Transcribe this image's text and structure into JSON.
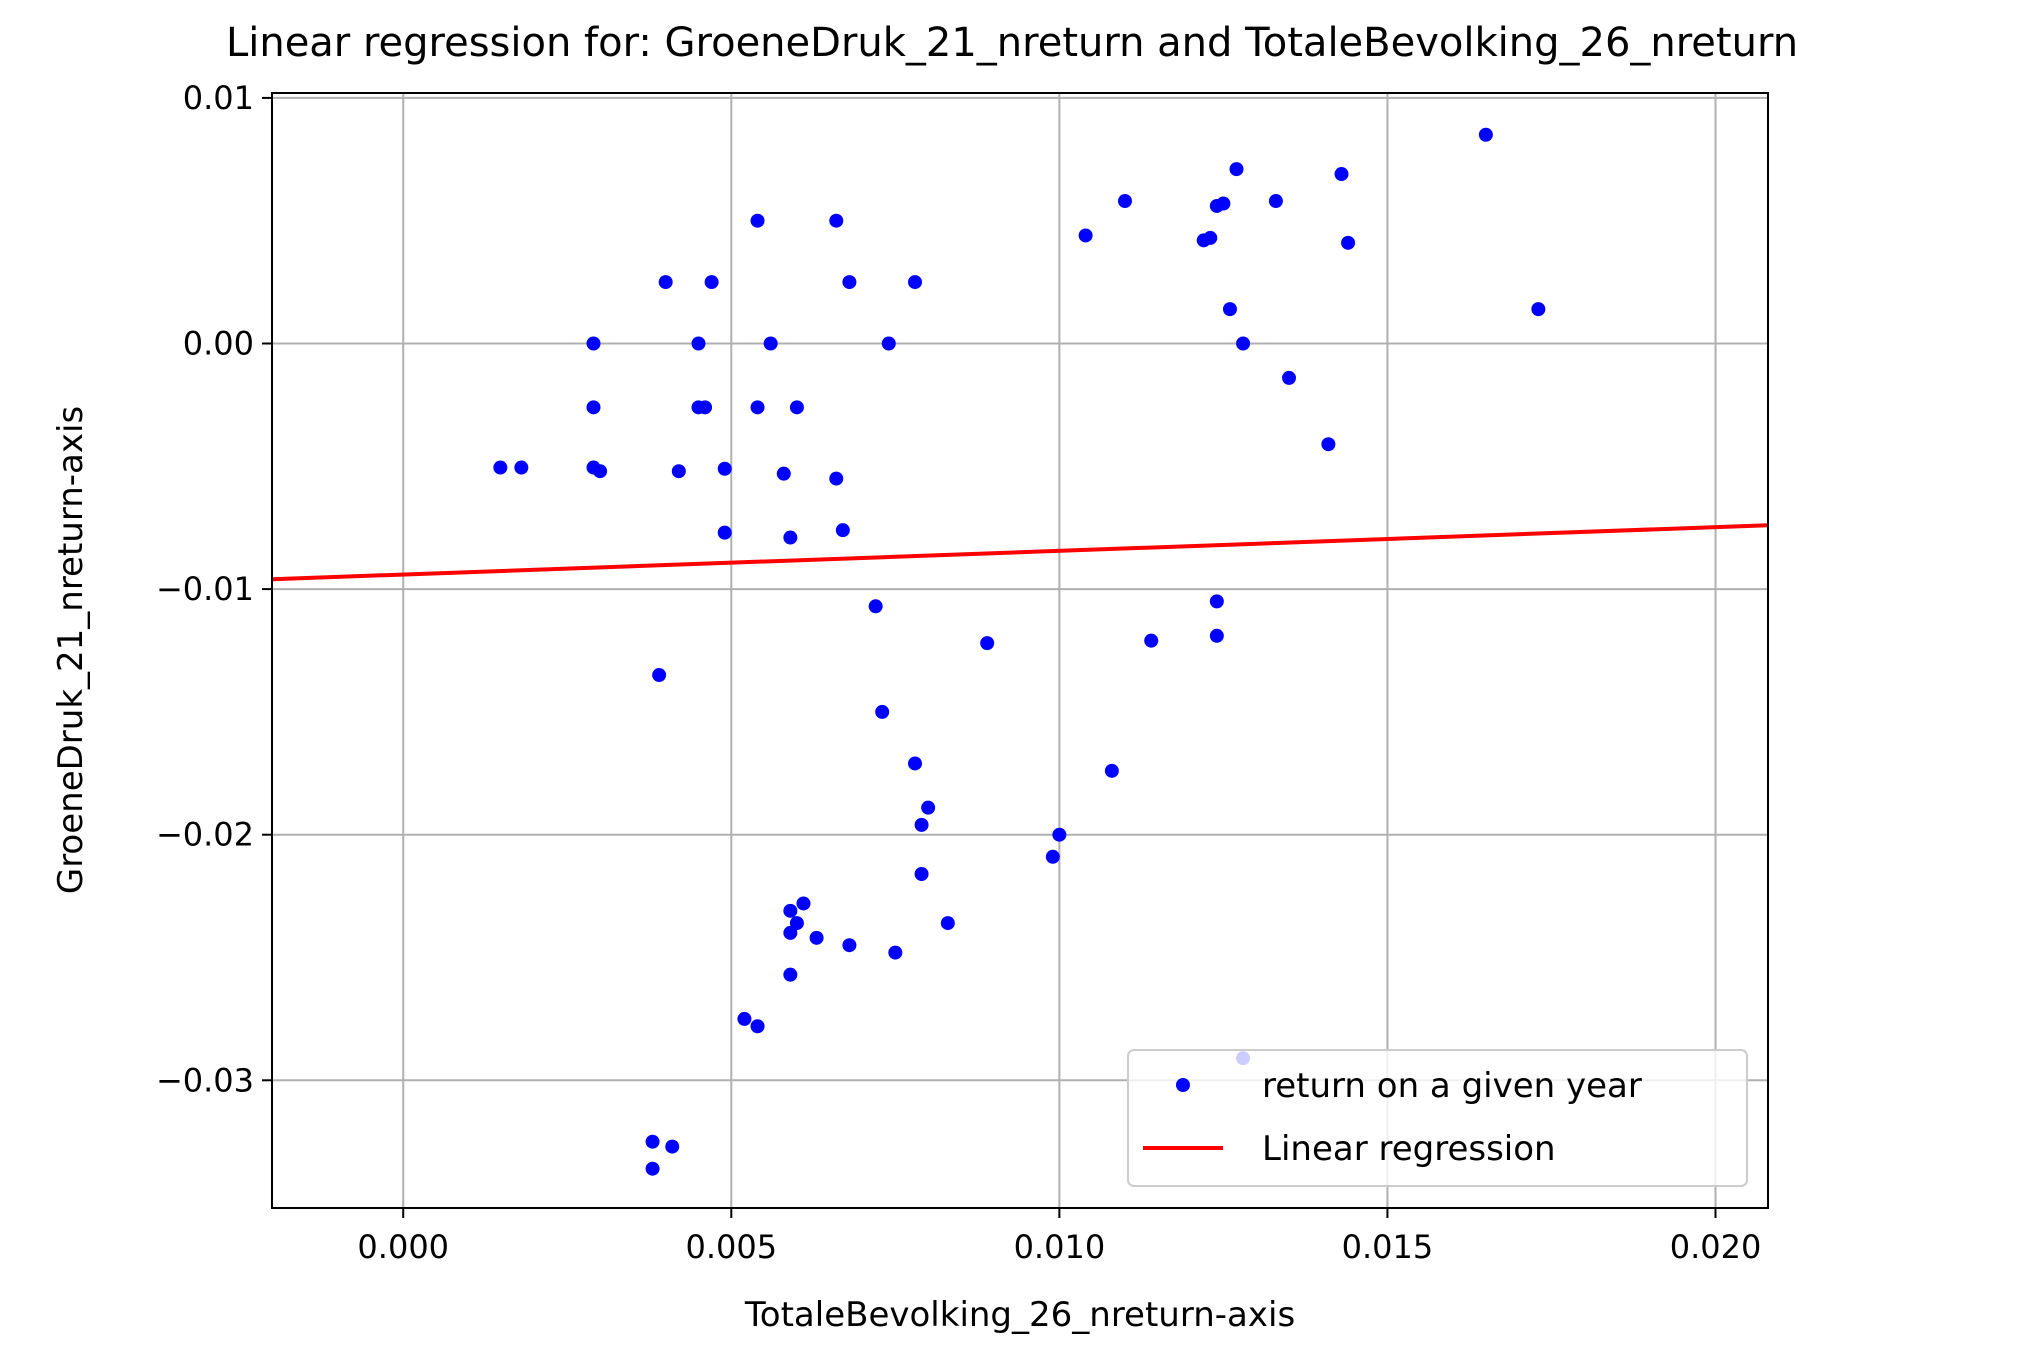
{
  "chart_data": {
    "type": "scatter",
    "title": "Linear regression for: GroeneDruk_21_nreturn and TotaleBevolking_26_nreturn",
    "xlabel": "TotaleBevolking_26_nreturn-axis",
    "ylabel": "GroeneDruk_21_nreturn-axis",
    "xlim": [
      -0.002,
      0.0208
    ],
    "ylim": [
      -0.0352,
      0.0102
    ],
    "xticks": [
      0.0,
      0.005,
      0.01,
      0.015,
      0.02
    ],
    "xtick_labels": [
      "0.000",
      "0.005",
      "0.010",
      "0.015",
      "0.020"
    ],
    "yticks": [
      0.01,
      0.0,
      -0.01,
      -0.02,
      -0.03
    ],
    "ytick_labels": [
      "0.01",
      "0.00",
      "−0.01",
      "−0.02",
      "−0.03"
    ],
    "grid": true,
    "legend_position": "lower-right",
    "series": [
      {
        "name": "return on a given year",
        "kind": "scatter",
        "color": "#0000ff",
        "points": [
          [
            0.00148,
            -0.00505
          ],
          [
            0.0018,
            -0.00505
          ],
          [
            0.0029,
            -0.00505
          ],
          [
            0.003,
            -0.0052
          ],
          [
            0.0029,
            0.0
          ],
          [
            0.0029,
            -0.0026
          ],
          [
            0.004,
            0.0025
          ],
          [
            0.0042,
            -0.0052
          ],
          [
            0.0039,
            -0.0135
          ],
          [
            0.0045,
            -0.0026
          ],
          [
            0.0046,
            -0.0026
          ],
          [
            0.0045,
            0.0
          ],
          [
            0.0047,
            0.0025
          ],
          [
            0.0049,
            -0.0051
          ],
          [
            0.0049,
            -0.0077
          ],
          [
            0.0054,
            0.005
          ],
          [
            0.0054,
            -0.0026
          ],
          [
            0.0056,
            0.0
          ],
          [
            0.0058,
            -0.0053
          ],
          [
            0.0059,
            -0.0079
          ],
          [
            0.006,
            -0.0026
          ],
          [
            0.0066,
            0.005
          ],
          [
            0.0068,
            0.0025
          ],
          [
            0.0066,
            -0.0055
          ],
          [
            0.0067,
            -0.0076
          ],
          [
            0.0074,
            0.0
          ],
          [
            0.0078,
            0.0025
          ],
          [
            0.0072,
            -0.0107
          ],
          [
            0.0073,
            -0.015
          ],
          [
            0.0078,
            -0.0171
          ],
          [
            0.008,
            -0.0189
          ],
          [
            0.0079,
            -0.0196
          ],
          [
            0.0079,
            -0.0216
          ],
          [
            0.0059,
            -0.0231
          ],
          [
            0.0061,
            -0.0228
          ],
          [
            0.006,
            -0.0236
          ],
          [
            0.0059,
            -0.024
          ],
          [
            0.0063,
            -0.0242
          ],
          [
            0.0068,
            -0.0245
          ],
          [
            0.0075,
            -0.0248
          ],
          [
            0.0083,
            -0.0236
          ],
          [
            0.0059,
            -0.0257
          ],
          [
            0.0052,
            -0.0275
          ],
          [
            0.0054,
            -0.0278
          ],
          [
            0.0038,
            -0.0325
          ],
          [
            0.0041,
            -0.0327
          ],
          [
            0.0038,
            -0.0336
          ],
          [
            0.0089,
            -0.0122
          ],
          [
            0.0099,
            -0.0209
          ],
          [
            0.01,
            -0.02
          ],
          [
            0.0108,
            -0.0174
          ],
          [
            0.0104,
            0.0044
          ],
          [
            0.011,
            0.0058
          ],
          [
            0.0114,
            -0.0121
          ],
          [
            0.0122,
            0.0042
          ],
          [
            0.0123,
            0.0043
          ],
          [
            0.0124,
            0.0056
          ],
          [
            0.0125,
            0.0057
          ],
          [
            0.0127,
            0.0071
          ],
          [
            0.0126,
            0.0014
          ],
          [
            0.0128,
            0.0
          ],
          [
            0.0124,
            -0.0105
          ],
          [
            0.0124,
            -0.0119
          ],
          [
            0.0133,
            0.0058
          ],
          [
            0.0135,
            -0.0014
          ],
          [
            0.0141,
            -0.0041
          ],
          [
            0.0143,
            0.0069
          ],
          [
            0.0144,
            0.0041
          ],
          [
            0.0128,
            -0.0291
          ],
          [
            0.0165,
            0.0085
          ],
          [
            0.0173,
            0.0014
          ]
        ]
      },
      {
        "name": "Linear regression",
        "kind": "line",
        "color": "#ff0000",
        "points": [
          [
            -0.002,
            -0.0096
          ],
          [
            0.0208,
            -0.0074
          ]
        ]
      }
    ]
  }
}
